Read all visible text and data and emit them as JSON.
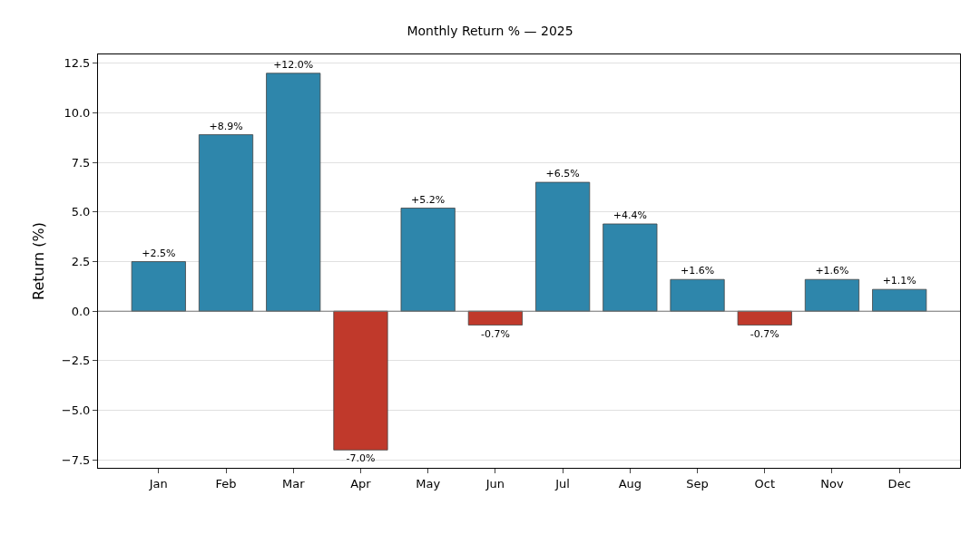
{
  "chart_data": {
    "type": "bar",
    "title": "Monthly Return % — 2025",
    "ylabel": "Return (%)",
    "categories": [
      "Jan",
      "Feb",
      "Mar",
      "Apr",
      "May",
      "Jun",
      "Jul",
      "Aug",
      "Sep",
      "Oct",
      "Nov",
      "Dec"
    ],
    "values": [
      2.5,
      8.9,
      12.0,
      -7.0,
      5.2,
      -0.7,
      6.5,
      4.4,
      1.6,
      -0.7,
      1.6,
      1.1
    ],
    "colors": [
      "#2e86ab",
      "#2e86ab",
      "#2e86ab",
      "#c0392b",
      "#2e86ab",
      "#c0392b",
      "#2e86ab",
      "#2e86ab",
      "#2e86ab",
      "#c0392b",
      "#2e86ab",
      "#2e86ab"
    ],
    "value_labels": [
      "+2.5%",
      "+8.9%",
      "+12.0%",
      "-7.0%",
      "+5.2%",
      "-0.7%",
      "+6.5%",
      "+4.4%",
      "+1.6%",
      "-0.7%",
      "+1.6%",
      "+1.1%"
    ],
    "ylim": [
      -7.9,
      12.95
    ],
    "yticks": [
      {
        "value": -7.5,
        "label": "−7.5"
      },
      {
        "value": -5,
        "label": "−5.0"
      },
      {
        "value": -2.5,
        "label": "−2.5"
      },
      {
        "value": 0,
        "label": "0.0"
      },
      {
        "value": 2.5,
        "label": "2.5"
      },
      {
        "value": 5,
        "label": "5.0"
      },
      {
        "value": 7.5,
        "label": "7.5"
      },
      {
        "value": 10,
        "label": "10.0"
      },
      {
        "value": 12.5,
        "label": "12.5"
      }
    ],
    "ref_lines": [
      {
        "axis": "y",
        "value": 0,
        "color": "#777777"
      }
    ],
    "grid": "y",
    "legend": false
  }
}
